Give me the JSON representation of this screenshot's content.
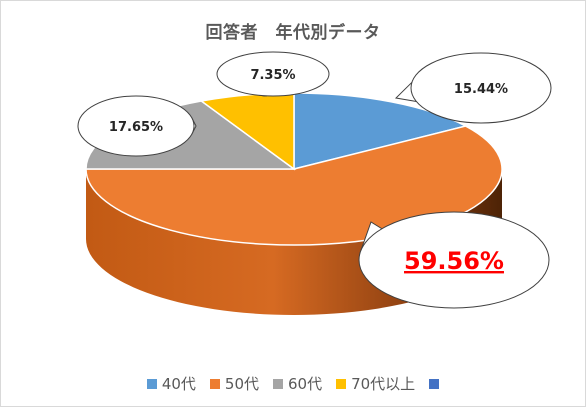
{
  "chart_data": {
    "type": "pie",
    "title": "回答者　年代別データ",
    "categories": [
      "40代",
      "50代",
      "60代",
      "70代以上",
      ""
    ],
    "values": [
      15.44,
      59.56,
      17.65,
      7.35,
      0
    ],
    "labels": [
      "15.44%",
      "59.56%",
      "17.65%",
      "7.35%"
    ],
    "colors": [
      "#5b9bd5",
      "#ed7d31",
      "#a5a5a5",
      "#ffc000",
      "#4472c4"
    ],
    "highlight_label_color": "#ff0000",
    "style": "3d-pie",
    "legend_position": "bottom"
  }
}
